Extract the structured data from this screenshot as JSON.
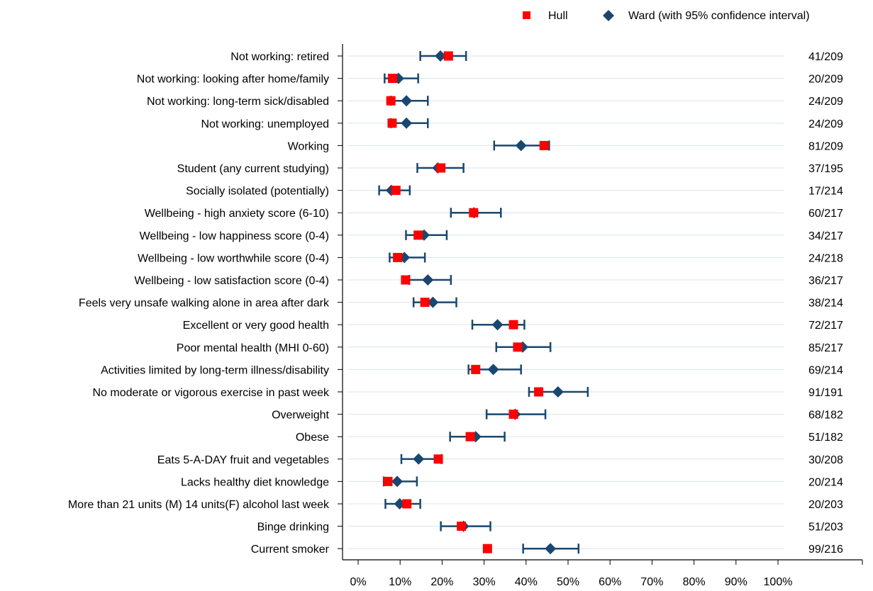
{
  "chart_data": {
    "type": "dot-plot-with-error-bars",
    "x_ticks": [
      "0%",
      "10%",
      "20%",
      "30%",
      "40%",
      "50%",
      "60%",
      "70%",
      "80%",
      "90%",
      "100%"
    ],
    "xlim": [
      0,
      100
    ],
    "legend": {
      "position": "top-right",
      "entries": [
        {
          "label": "Hull",
          "marker": "square",
          "color": "#ff0000"
        },
        {
          "label": "Ward (with 95% confidence interval)",
          "marker": "diamond",
          "color": "#1a476f"
        }
      ]
    },
    "colors": {
      "hull": "#ff0000",
      "ward": "#1a476f"
    },
    "rows": [
      {
        "label": "Not working: retired",
        "hull": 21.5,
        "ward": 19.6,
        "ci": [
          14.8,
          25.7
        ],
        "ratio": "41/209"
      },
      {
        "label": "Not working: looking after home/family",
        "hull": 8.2,
        "ward": 9.6,
        "ci": [
          6.3,
          14.3
        ],
        "ratio": "20/209"
      },
      {
        "label": "Not working: long-term sick/disabled",
        "hull": 7.8,
        "ward": 11.5,
        "ci": [
          7.8,
          16.6
        ],
        "ratio": "24/209"
      },
      {
        "label": "Not working: unemployed",
        "hull": 8.1,
        "ward": 11.5,
        "ci": [
          7.8,
          16.6
        ],
        "ratio": "24/209"
      },
      {
        "label": "Working",
        "hull": 44.3,
        "ward": 38.8,
        "ci": [
          32.4,
          45.5
        ],
        "ratio": "81/209"
      },
      {
        "label": "Student (any current studying)",
        "hull": 19.7,
        "ward": 19.0,
        "ci": [
          14.1,
          25.1
        ],
        "ratio": "37/195"
      },
      {
        "label": "Socially isolated (potentially)",
        "hull": 9.0,
        "ward": 7.9,
        "ci": [
          5.0,
          12.3
        ],
        "ratio": "17/214"
      },
      {
        "label": "Wellbeing - high anxiety score (6-10)",
        "hull": 27.5,
        "ward": 27.6,
        "ci": [
          22.1,
          34.0
        ],
        "ratio": "60/217"
      },
      {
        "label": "Wellbeing - low happiness score (0-4)",
        "hull": 14.3,
        "ward": 15.7,
        "ci": [
          11.4,
          21.1
        ],
        "ratio": "34/217"
      },
      {
        "label": "Wellbeing - low worthwhile score (0-4)",
        "hull": 9.4,
        "ward": 11.0,
        "ci": [
          7.5,
          15.9
        ],
        "ratio": "24/218"
      },
      {
        "label": "Wellbeing - low satisfaction score (0-4)",
        "hull": 11.3,
        "ward": 16.6,
        "ci": [
          12.2,
          22.1
        ],
        "ratio": "36/217"
      },
      {
        "label": "Feels very unsafe walking alone in area after dark",
        "hull": 15.9,
        "ward": 17.8,
        "ci": [
          13.2,
          23.4
        ],
        "ratio": "38/214"
      },
      {
        "label": "Excellent or very good health",
        "hull": 37.0,
        "ward": 33.2,
        "ci": [
          27.2,
          39.6
        ],
        "ratio": "72/217"
      },
      {
        "label": "Poor mental health (MHI 0-60)",
        "hull": 38.0,
        "ward": 39.2,
        "ci": [
          32.9,
          45.8
        ],
        "ratio": "85/217"
      },
      {
        "label": "Activities limited by long-term illness/disability",
        "hull": 28.0,
        "ward": 32.2,
        "ci": [
          26.3,
          38.8
        ],
        "ratio": "69/214"
      },
      {
        "label": "No moderate or vigorous exercise in past week",
        "hull": 43.0,
        "ward": 47.6,
        "ci": [
          40.7,
          54.7
        ],
        "ratio": "91/191"
      },
      {
        "label": "Overweight",
        "hull": 37.0,
        "ward": 37.4,
        "ci": [
          30.6,
          44.6
        ],
        "ratio": "68/182"
      },
      {
        "label": "Obese",
        "hull": 26.7,
        "ward": 28.0,
        "ci": [
          21.9,
          34.9
        ],
        "ratio": "51/182"
      },
      {
        "label": "Eats 5-A-DAY fruit and vegetables",
        "hull": 19.1,
        "ward": 14.4,
        "ci": [
          10.3,
          19.9
        ],
        "ratio": "30/208"
      },
      {
        "label": "Lacks healthy diet knowledge",
        "hull": 7.1,
        "ward": 9.3,
        "ci": [
          6.1,
          14.0
        ],
        "ratio": "20/214"
      },
      {
        "label": "More than 21 units (M) 14 units(F) alcohol last week",
        "hull": 11.6,
        "ward": 9.9,
        "ci": [
          6.5,
          14.8
        ],
        "ratio": "20/203"
      },
      {
        "label": "Binge drinking",
        "hull": 24.6,
        "ward": 25.1,
        "ci": [
          19.7,
          31.5
        ],
        "ratio": "51/203"
      },
      {
        "label": "Current smoker",
        "hull": 30.8,
        "ward": 45.8,
        "ci": [
          39.3,
          52.5
        ],
        "ratio": "99/216"
      }
    ]
  }
}
